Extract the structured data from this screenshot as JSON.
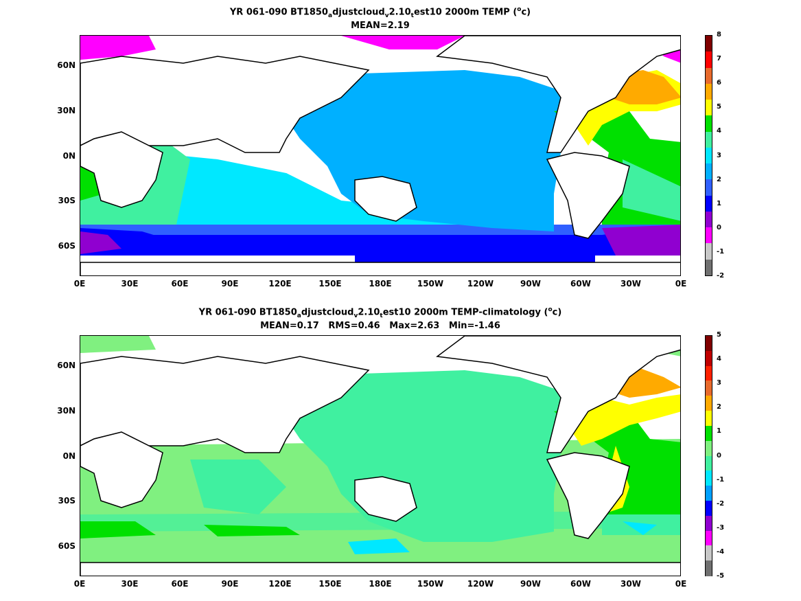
{
  "panels": [
    {
      "title_parts": [
        "YR 061-090 BT1850",
        "a",
        "djustcloud",
        "v",
        "2.10",
        "t",
        "est10 2000m TEMP (",
        "o",
        "c)"
      ],
      "stats": "MEAN=2.19",
      "colorbar": {
        "ticks": [
          "8",
          "7",
          "6",
          "5",
          "4",
          "3",
          "2",
          "1",
          "0",
          "-1",
          "-2"
        ],
        "colors": [
          "#800000",
          "#ff0000",
          "#e86a2c",
          "#ffaa00",
          "#ffff00",
          "#00e000",
          "#40f0a0",
          "#00e8ff",
          "#00b0ff",
          "#3060ff",
          "#0000ff",
          "#9000d0",
          "#ff00ff",
          "#c8c8c8",
          "#707070"
        ]
      }
    },
    {
      "title_parts": [
        "YR 061-090 BT1850",
        "a",
        "djustcloud",
        "v",
        "2.10",
        "t",
        "est10 2000m TEMP-climatology (",
        "o",
        "c)"
      ],
      "stats": "MEAN=0.17   RMS=0.46   Max=2.63   Min=-1.46",
      "colorbar": {
        "ticks": [
          "5",
          "4",
          "3",
          "2",
          "1",
          "0",
          "-1",
          "-2",
          "-3",
          "-4",
          "-5"
        ],
        "colors": [
          "#800000",
          "#c00000",
          "#ff2000",
          "#e86a2c",
          "#ffaa00",
          "#ffff00",
          "#00e000",
          "#80f080",
          "#40f0a0",
          "#00e8ff",
          "#00a0ff",
          "#0000ff",
          "#9000d0",
          "#ff00ff",
          "#c8c8c8",
          "#707070"
        ]
      }
    }
  ],
  "x_ticks": [
    "0E",
    "30E",
    "60E",
    "90E",
    "120E",
    "150E",
    "180E",
    "150W",
    "120W",
    "90W",
    "60W",
    "30W",
    "0E"
  ],
  "y_ticks": [
    "60N",
    "30N",
    "0N",
    "30S",
    "60S"
  ]
}
